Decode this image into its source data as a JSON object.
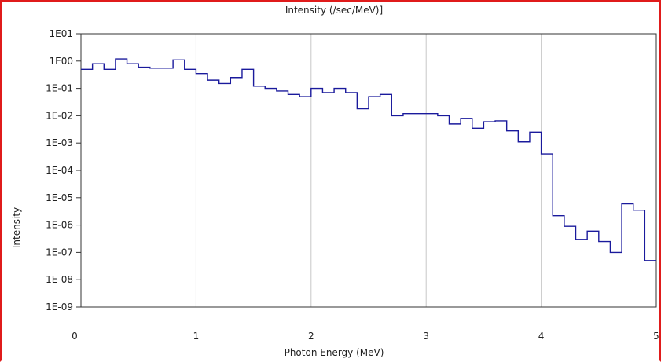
{
  "chart_data": {
    "type": "line",
    "title": "Intensity (/sec/MeV)]",
    "xlabel": "Photon Energy (MeV)",
    "ylabel": "Intensity",
    "xlim": [
      0,
      5
    ],
    "ylim_log10": [
      -9,
      1
    ],
    "y_scale": "log",
    "grid": true,
    "x_ticks": [
      {
        "value": 0,
        "label": "0"
      },
      {
        "value": 1,
        "label": "1"
      },
      {
        "value": 2,
        "label": "2"
      },
      {
        "value": 3,
        "label": "3"
      },
      {
        "value": 4,
        "label": "4"
      },
      {
        "value": 5,
        "label": "5"
      }
    ],
    "y_ticks": [
      {
        "exp": 1,
        "label": "1E01"
      },
      {
        "exp": 0,
        "label": "1E00"
      },
      {
        "exp": -1,
        "label": "1E-01"
      },
      {
        "exp": -2,
        "label": "1E-02"
      },
      {
        "exp": -3,
        "label": "1E-03"
      },
      {
        "exp": -4,
        "label": "1E-04"
      },
      {
        "exp": -5,
        "label": "1E-05"
      },
      {
        "exp": -6,
        "label": "1E-06"
      },
      {
        "exp": -7,
        "label": "1E-07"
      },
      {
        "exp": -8,
        "label": "1E-08"
      },
      {
        "exp": -9,
        "label": "1E-09"
      }
    ],
    "series": [
      {
        "color": "#1a1a9c",
        "step_edges_mev": [
          0.0,
          0.1,
          0.2,
          0.3,
          0.4,
          0.5,
          0.6,
          0.7,
          0.8,
          0.9,
          1.0,
          1.1,
          1.2,
          1.3,
          1.4,
          1.5,
          1.6,
          1.7,
          1.8,
          1.9,
          2.0,
          2.1,
          2.2,
          2.3,
          2.4,
          2.5,
          2.6,
          2.7,
          2.8,
          2.9,
          3.0,
          3.1,
          3.2,
          3.3,
          3.4,
          3.5,
          3.6,
          3.7,
          3.8,
          3.9,
          4.0,
          4.1,
          4.2,
          4.3,
          4.4,
          4.5,
          4.6,
          4.7,
          4.8,
          4.9,
          5.0
        ],
        "intensity": [
          0.5,
          0.8,
          0.5,
          1.2,
          0.8,
          0.6,
          0.55,
          0.55,
          1.1,
          0.5,
          0.35,
          0.2,
          0.15,
          0.25,
          0.5,
          0.12,
          0.1,
          0.08,
          0.06,
          0.05,
          0.1,
          0.07,
          0.1,
          0.07,
          0.018,
          0.05,
          0.06,
          0.01,
          0.012,
          0.012,
          0.012,
          0.01,
          0.005,
          0.008,
          0.0035,
          0.006,
          0.0065,
          0.0028,
          0.0011,
          0.0025,
          0.0004,
          2.2e-06,
          9e-07,
          3e-07,
          6e-07,
          2.5e-07,
          1e-07,
          6e-06,
          3.5e-06,
          5e-08
        ]
      }
    ]
  }
}
